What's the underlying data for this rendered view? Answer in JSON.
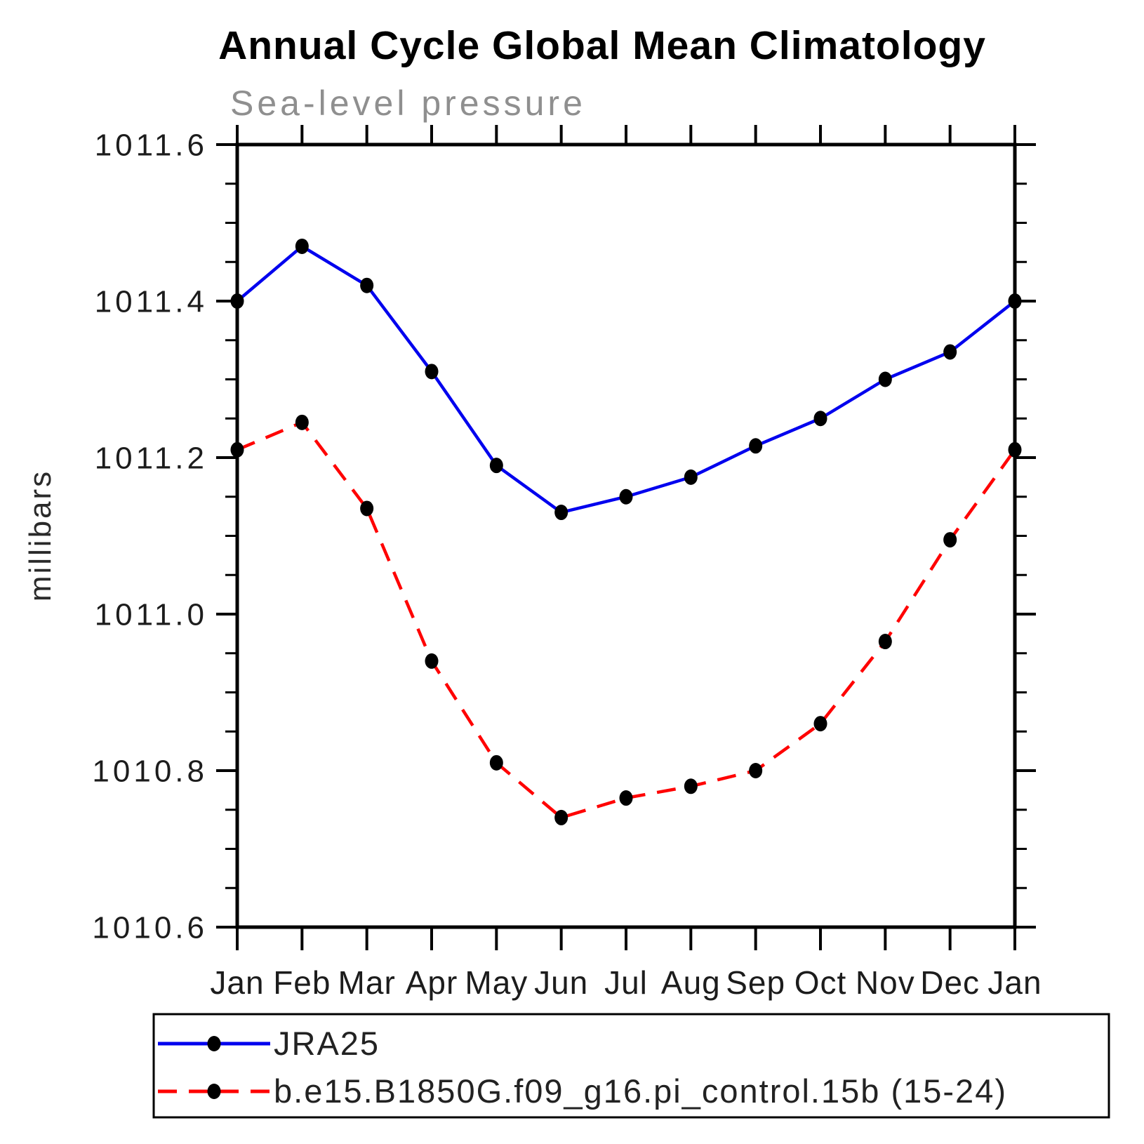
{
  "header": {
    "title": "Annual Cycle Global Mean Climatology",
    "subtitle": "Sea-level pressure"
  },
  "axes": {
    "y_label": "millibars"
  },
  "chart_data": {
    "type": "line",
    "title": "Annual Cycle Global Mean Climatology",
    "subtitle": "Sea-level pressure",
    "xlabel": "",
    "ylabel": "millibars",
    "categories": [
      "Jan",
      "Feb",
      "Mar",
      "Apr",
      "May",
      "Jun",
      "Jul",
      "Aug",
      "Sep",
      "Oct",
      "Nov",
      "Dec",
      "Jan"
    ],
    "ylim": [
      1010.6,
      1011.6
    ],
    "ytick_step": 0.2,
    "ytick_minor_step": 0.05,
    "ytick_labels": [
      "1011.6",
      "1011.4",
      "1011.2",
      "1011.0",
      "1010.8",
      "1010.6"
    ],
    "grid": false,
    "legend_position": "bottom",
    "background": "#ffffff",
    "axis_color": "#000000",
    "marker_color": "#000000",
    "series": [
      {
        "name": "JRA25",
        "color": "#0000ee",
        "style": "solid",
        "marker": "filled-circle",
        "values": [
          1011.4,
          1011.47,
          1011.42,
          1011.31,
          1011.19,
          1011.13,
          1011.15,
          1011.175,
          1011.215,
          1011.25,
          1011.3,
          1011.335,
          1011.4
        ]
      },
      {
        "name": "b.e15.B1850G.f09_g16.pi_control.15b (15-24)",
        "color": "#ff0000",
        "style": "dashed",
        "marker": "filled-circle",
        "values": [
          1011.21,
          1011.245,
          1011.135,
          1010.94,
          1010.81,
          1010.74,
          1010.765,
          1010.78,
          1010.8,
          1010.86,
          1010.965,
          1011.095,
          1011.21
        ]
      }
    ]
  }
}
